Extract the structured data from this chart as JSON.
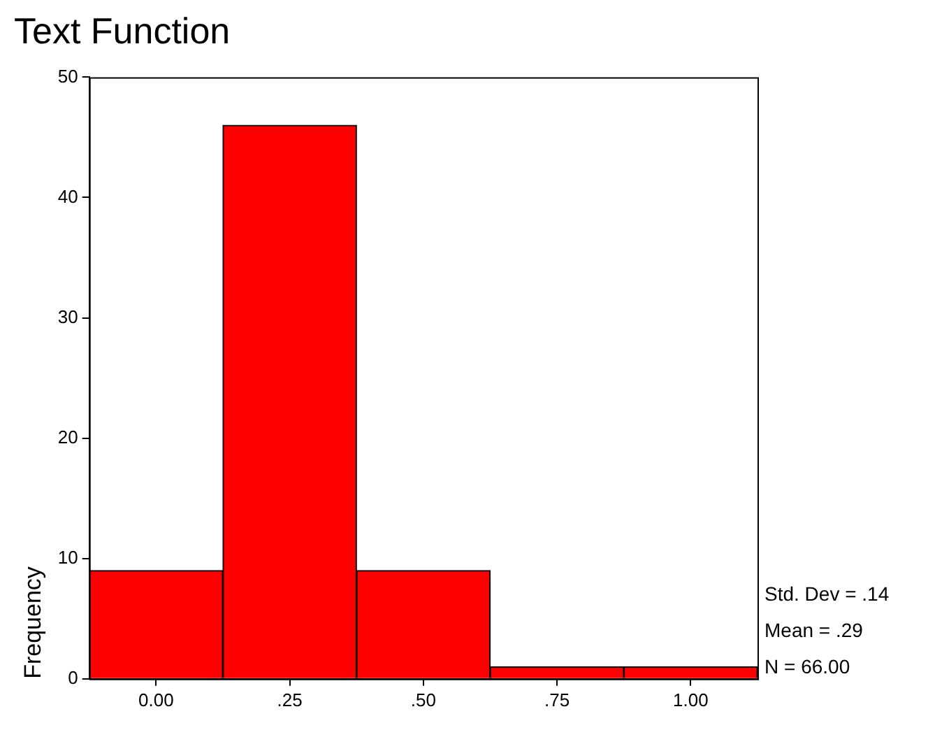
{
  "chart_data": {
    "type": "histogram",
    "title": "Text Function",
    "ylabel": "Frequency",
    "bins": [
      -0.125,
      0.125,
      0.375,
      0.625,
      0.875,
      1.125
    ],
    "values": [
      9,
      46,
      9,
      1,
      1
    ],
    "color": "#ff0000",
    "xlim": [
      -0.125,
      1.125
    ],
    "xticks": [
      {
        "value": 0,
        "label": "0.00"
      },
      {
        "value": 0.25,
        "label": ".25"
      },
      {
        "value": 0.5,
        "label": ".50"
      },
      {
        "value": 0.75,
        "label": ".75"
      },
      {
        "value": 1,
        "label": "1.00"
      }
    ],
    "ylim": [
      0,
      50
    ],
    "yticks": [
      0,
      10,
      20,
      30,
      40,
      50
    ],
    "grid": false,
    "legend": false,
    "annotations": [
      "Std. Dev = .14",
      "Mean = .29",
      "N = 66.00"
    ]
  }
}
